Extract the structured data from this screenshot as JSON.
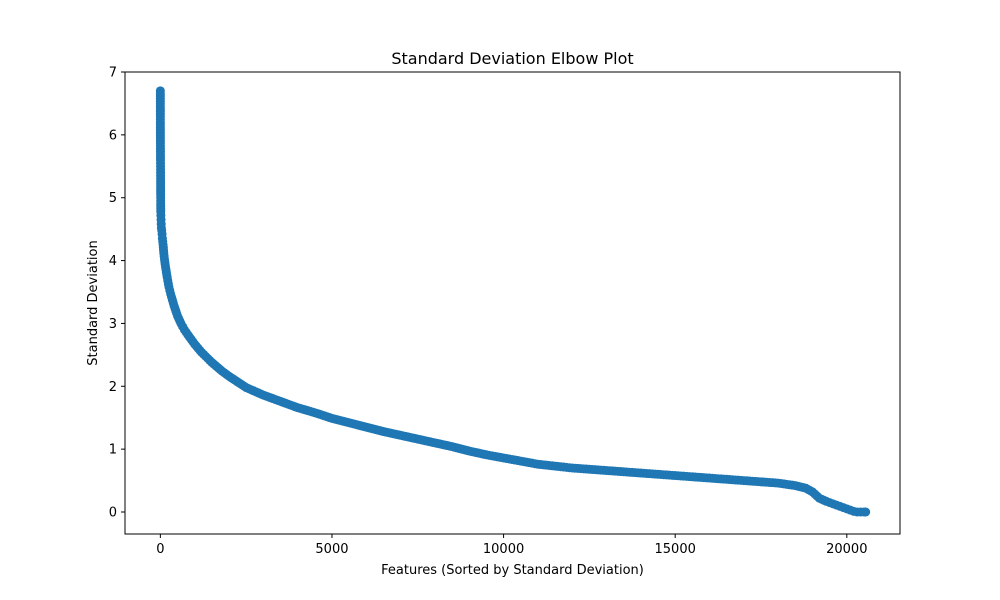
{
  "chart_data": {
    "type": "line",
    "title": "Standard Deviation Elbow Plot",
    "xlabel": "Features (Sorted by Standard Deviation)",
    "ylabel": "Standard Deviation",
    "xlim": [
      -1030,
      21550
    ],
    "ylim": [
      -0.35,
      7.0
    ],
    "xticks": [
      0,
      5000,
      10000,
      15000,
      20000
    ],
    "yticks": [
      0,
      1,
      2,
      3,
      4,
      5,
      6,
      7
    ],
    "grid": false,
    "legend": "none",
    "marker": "circle",
    "series_color": "#1f77b4",
    "series": [
      {
        "x": [
          0,
          1,
          2,
          3,
          4,
          5,
          6,
          7,
          8,
          9,
          10,
          12,
          15,
          20,
          25,
          30,
          40,
          50,
          60,
          80,
          100,
          120,
          150,
          200,
          250,
          300,
          400,
          500,
          600,
          700,
          800,
          1000,
          1200,
          1500,
          1800,
          2000,
          2500,
          3000,
          3500,
          4000,
          4500,
          5000,
          5500,
          6000,
          6500,
          7000,
          7500,
          8000,
          8500,
          9000,
          9500,
          10000,
          10500,
          11000,
          11500,
          12000,
          12500,
          13000,
          13500,
          14000,
          14500,
          15000,
          15500,
          16000,
          16500,
          17000,
          17500,
          18000,
          18500,
          18800,
          19000,
          19200,
          19400,
          19600,
          19800,
          20000,
          20100,
          20200,
          20300,
          20400,
          20500,
          20550
        ],
        "y": [
          6.7,
          6.04,
          5.87,
          5.78,
          5.6,
          5.55,
          5.5,
          5.35,
          5.13,
          5.05,
          4.9,
          4.78,
          4.72,
          4.65,
          4.58,
          4.52,
          4.48,
          4.42,
          4.35,
          4.25,
          4.12,
          4.02,
          3.9,
          3.73,
          3.58,
          3.47,
          3.28,
          3.12,
          3.0,
          2.9,
          2.82,
          2.67,
          2.54,
          2.38,
          2.24,
          2.16,
          1.98,
          1.86,
          1.76,
          1.66,
          1.58,
          1.49,
          1.42,
          1.35,
          1.28,
          1.22,
          1.16,
          1.1,
          1.04,
          0.97,
          0.91,
          0.86,
          0.81,
          0.76,
          0.73,
          0.7,
          0.68,
          0.66,
          0.64,
          0.62,
          0.6,
          0.58,
          0.56,
          0.54,
          0.52,
          0.5,
          0.48,
          0.46,
          0.42,
          0.38,
          0.32,
          0.22,
          0.17,
          0.13,
          0.09,
          0.05,
          0.03,
          0.01,
          0.0,
          0.0,
          0.0,
          0.0
        ]
      }
    ]
  }
}
